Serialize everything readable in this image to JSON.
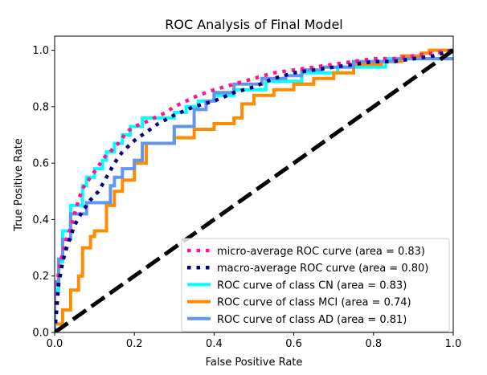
{
  "chart_data": {
    "type": "line",
    "title": "ROC Analysis of Final Model",
    "xlabel": "False Positive Rate",
    "ylabel": "True Positive Rate",
    "xlim": [
      0.0,
      1.0
    ],
    "ylim": [
      0.0,
      1.05
    ],
    "xticks": [
      "0.0",
      "0.2",
      "0.4",
      "0.6",
      "0.8",
      "1.0"
    ],
    "yticks": [
      "0.0",
      "0.2",
      "0.4",
      "0.6",
      "0.8",
      "1.0"
    ],
    "grid": false,
    "legend_position": "lower-right",
    "series": [
      {
        "name": "micro-average ROC curve (area = 0.83)",
        "color": "#ff1493",
        "style": "dotted",
        "x": [
          0.0,
          0.005,
          0.01,
          0.02,
          0.03,
          0.04,
          0.05,
          0.06,
          0.07,
          0.08,
          0.09,
          0.1,
          0.11,
          0.12,
          0.13,
          0.14,
          0.15,
          0.16,
          0.17,
          0.18,
          0.2,
          0.22,
          0.25,
          0.28,
          0.3,
          0.33,
          0.36,
          0.4,
          0.45,
          0.5,
          0.55,
          0.6,
          0.65,
          0.7,
          0.75,
          0.8,
          0.85,
          0.9,
          0.95,
          1.0
        ],
        "y": [
          0.0,
          0.1,
          0.22,
          0.28,
          0.33,
          0.37,
          0.42,
          0.47,
          0.51,
          0.53,
          0.55,
          0.57,
          0.59,
          0.61,
          0.63,
          0.64,
          0.66,
          0.67,
          0.69,
          0.71,
          0.73,
          0.74,
          0.76,
          0.78,
          0.8,
          0.82,
          0.84,
          0.86,
          0.88,
          0.9,
          0.92,
          0.93,
          0.94,
          0.95,
          0.96,
          0.97,
          0.97,
          0.98,
          0.99,
          1.0
        ]
      },
      {
        "name": "macro-average ROC curve (area = 0.80)",
        "color": "#000080",
        "style": "dotted",
        "x": [
          0.0,
          0.005,
          0.01,
          0.02,
          0.03,
          0.04,
          0.05,
          0.07,
          0.09,
          0.11,
          0.13,
          0.15,
          0.17,
          0.2,
          0.23,
          0.26,
          0.3,
          0.35,
          0.4,
          0.45,
          0.5,
          0.55,
          0.6,
          0.65,
          0.7,
          0.75,
          0.8,
          0.85,
          0.9,
          0.95,
          1.0
        ],
        "y": [
          0.0,
          0.08,
          0.17,
          0.25,
          0.3,
          0.34,
          0.38,
          0.43,
          0.47,
          0.5,
          0.55,
          0.6,
          0.64,
          0.68,
          0.71,
          0.74,
          0.77,
          0.8,
          0.82,
          0.85,
          0.87,
          0.9,
          0.92,
          0.93,
          0.94,
          0.95,
          0.96,
          0.96,
          0.97,
          0.98,
          1.0
        ]
      },
      {
        "name": "ROC curve of class CN (area = 0.83)",
        "color": "#00ffff",
        "style": "solid",
        "x": [
          0.0,
          0.0,
          0.01,
          0.01,
          0.02,
          0.02,
          0.04,
          0.04,
          0.07,
          0.07,
          0.08,
          0.08,
          0.1,
          0.1,
          0.12,
          0.12,
          0.13,
          0.13,
          0.15,
          0.15,
          0.17,
          0.17,
          0.19,
          0.19,
          0.22,
          0.22,
          0.3,
          0.3,
          0.33,
          0.33,
          0.36,
          0.36,
          0.4,
          0.4,
          0.45,
          0.45,
          0.53,
          0.53,
          0.62,
          0.62,
          0.71,
          0.71,
          0.83,
          0.83,
          1.0
        ],
        "y": [
          0.0,
          0.15,
          0.15,
          0.25,
          0.25,
          0.36,
          0.36,
          0.45,
          0.45,
          0.52,
          0.52,
          0.55,
          0.55,
          0.58,
          0.58,
          0.61,
          0.61,
          0.64,
          0.64,
          0.67,
          0.67,
          0.7,
          0.7,
          0.73,
          0.73,
          0.76,
          0.76,
          0.78,
          0.78,
          0.8,
          0.8,
          0.82,
          0.82,
          0.84,
          0.84,
          0.86,
          0.86,
          0.89,
          0.89,
          0.92,
          0.92,
          0.94,
          0.94,
          0.97,
          0.97
        ]
      },
      {
        "name": "ROC curve of class MCI (area = 0.74)",
        "color": "#ff8c00",
        "style": "solid",
        "x": [
          0.0,
          0.0,
          0.02,
          0.02,
          0.04,
          0.04,
          0.06,
          0.06,
          0.07,
          0.07,
          0.09,
          0.09,
          0.1,
          0.1,
          0.13,
          0.13,
          0.15,
          0.15,
          0.17,
          0.17,
          0.2,
          0.2,
          0.23,
          0.23,
          0.3,
          0.3,
          0.35,
          0.35,
          0.4,
          0.4,
          0.45,
          0.45,
          0.47,
          0.47,
          0.5,
          0.5,
          0.55,
          0.55,
          0.6,
          0.6,
          0.65,
          0.65,
          0.7,
          0.7,
          0.75,
          0.75,
          0.82,
          0.82,
          0.87,
          0.87,
          0.92,
          0.92,
          0.94,
          0.94,
          1.0
        ],
        "y": [
          0.0,
          0.03,
          0.03,
          0.08,
          0.08,
          0.15,
          0.15,
          0.2,
          0.2,
          0.3,
          0.3,
          0.34,
          0.34,
          0.36,
          0.36,
          0.45,
          0.45,
          0.5,
          0.5,
          0.54,
          0.54,
          0.6,
          0.6,
          0.67,
          0.67,
          0.69,
          0.69,
          0.72,
          0.72,
          0.74,
          0.74,
          0.76,
          0.76,
          0.81,
          0.81,
          0.84,
          0.84,
          0.86,
          0.86,
          0.88,
          0.88,
          0.9,
          0.9,
          0.92,
          0.92,
          0.95,
          0.95,
          0.96,
          0.96,
          0.98,
          0.98,
          0.99,
          0.99,
          1.0,
          1.0
        ]
      },
      {
        "name": "ROC curve of class AD (area = 0.81)",
        "color": "#6495ed",
        "style": "solid",
        "x": [
          0.0,
          0.0,
          0.01,
          0.01,
          0.02,
          0.02,
          0.04,
          0.04,
          0.08,
          0.08,
          0.14,
          0.14,
          0.15,
          0.15,
          0.17,
          0.17,
          0.2,
          0.2,
          0.22,
          0.22,
          0.3,
          0.3,
          0.35,
          0.35,
          0.38,
          0.38,
          0.4,
          0.4,
          0.45,
          0.45,
          0.52,
          0.52,
          0.58,
          0.58,
          0.62,
          0.62,
          0.67,
          0.67,
          0.75,
          0.75,
          0.85,
          0.85,
          0.92,
          0.92,
          1.0
        ],
        "y": [
          0.0,
          0.18,
          0.18,
          0.26,
          0.26,
          0.33,
          0.33,
          0.42,
          0.42,
          0.46,
          0.46,
          0.52,
          0.52,
          0.55,
          0.55,
          0.58,
          0.58,
          0.61,
          0.61,
          0.67,
          0.67,
          0.73,
          0.73,
          0.79,
          0.79,
          0.82,
          0.82,
          0.85,
          0.85,
          0.88,
          0.88,
          0.9,
          0.9,
          0.91,
          0.91,
          0.93,
          0.93,
          0.94,
          0.94,
          0.96,
          0.96,
          0.97,
          0.97,
          0.97,
          0.97
        ]
      },
      {
        "name": "",
        "color": "#000000",
        "style": "dashed",
        "x": [
          0.0,
          1.0
        ],
        "y": [
          0.0,
          1.0
        ]
      }
    ]
  }
}
